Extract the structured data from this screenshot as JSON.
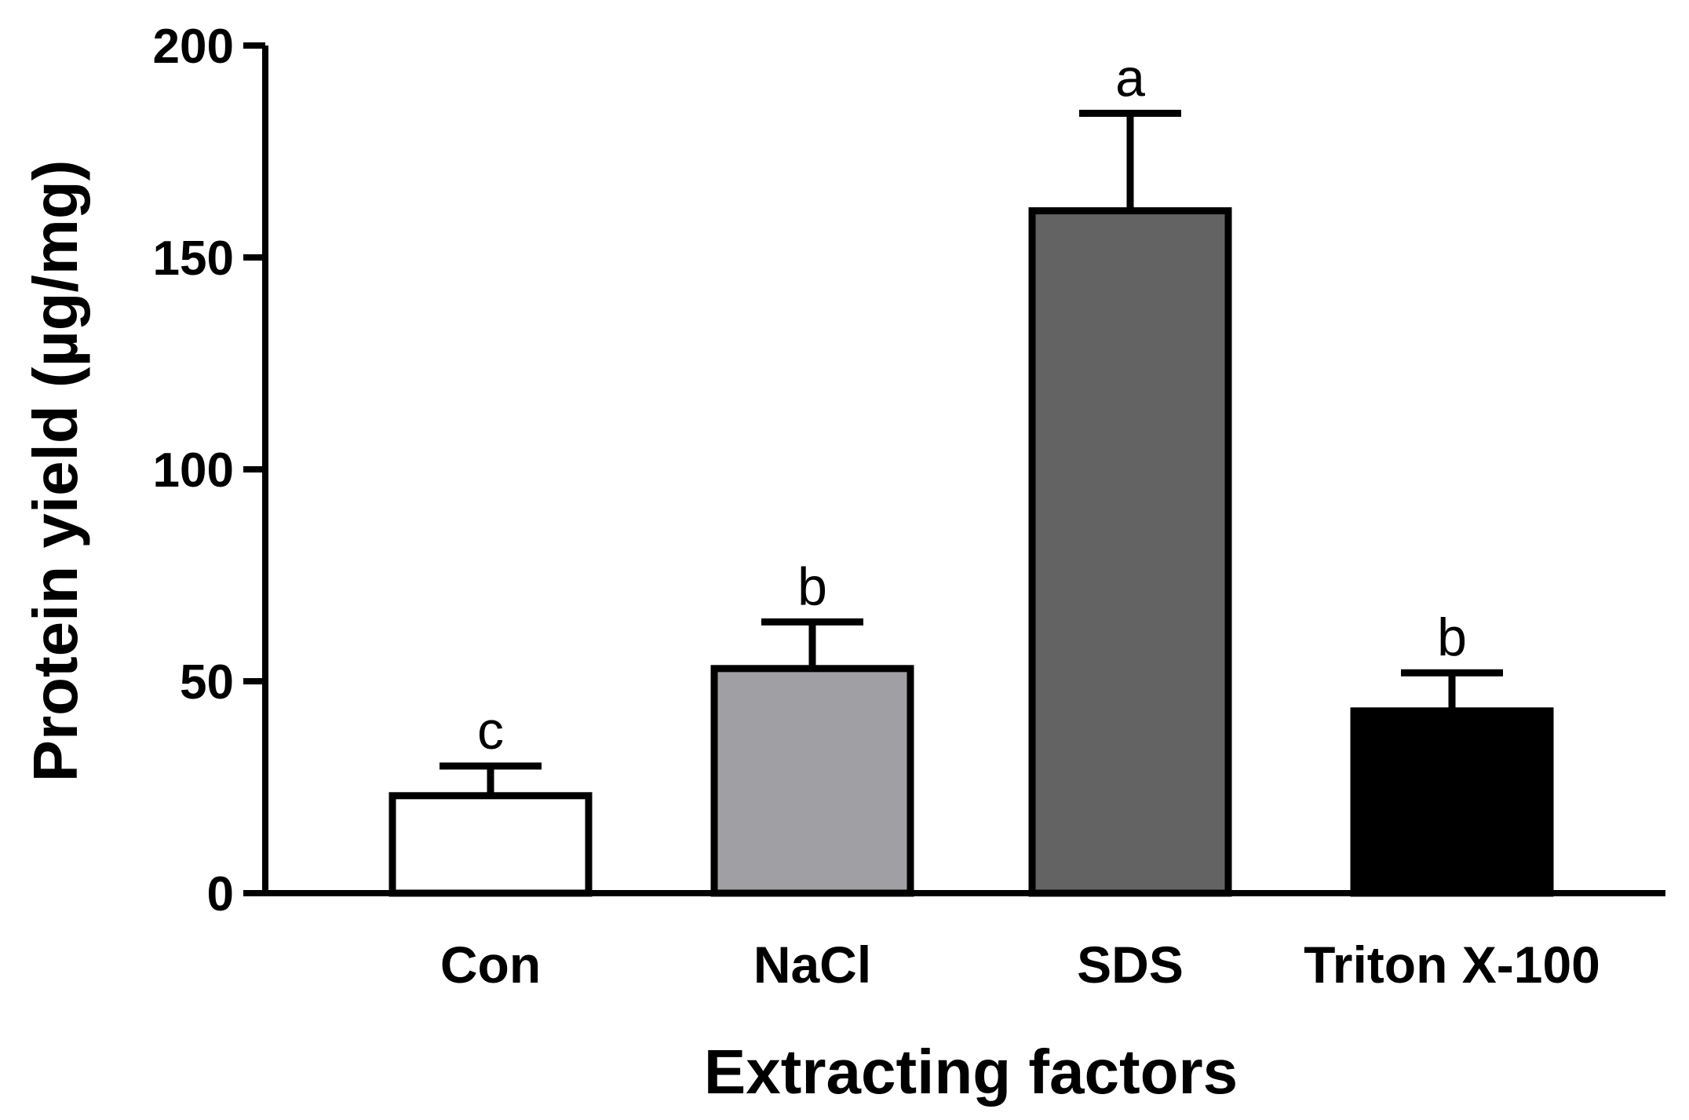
{
  "chart_data": {
    "type": "bar",
    "title": "",
    "xlabel": "Extracting factors",
    "ylabel": "Protein yield (µg/mg)",
    "ylim": [
      0,
      200
    ],
    "yticks": [
      0,
      50,
      100,
      150,
      200
    ],
    "categories": [
      "Con",
      "NaCl",
      "SDS",
      "Triton X-100"
    ],
    "values": [
      23,
      53,
      161,
      43
    ],
    "errors": [
      7,
      11,
      23,
      9
    ],
    "significance": [
      "c",
      "b",
      "a",
      "b"
    ],
    "bar_colors": [
      "#ffffff",
      "#a0a0a4",
      "#636363",
      "#000000"
    ],
    "grid": false,
    "legend": "none"
  }
}
